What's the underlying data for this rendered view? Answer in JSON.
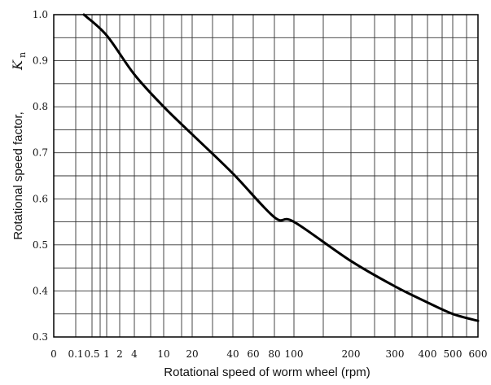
{
  "chart_data": {
    "type": "line",
    "title": "",
    "xlabel": "Rotational speed of worm wheel (rpm)",
    "ylabel": "Rotational speed factor,",
    "ylabel_symbol": "K",
    "ylabel_symbol_sub": "n",
    "x_ticks": [
      "0",
      "0.1",
      "0.5",
      "1",
      "2",
      "4",
      "10",
      "20",
      "40",
      "60",
      "80",
      "100",
      "200",
      "300",
      "400",
      "500",
      "600"
    ],
    "y_ticks": [
      "0.3",
      "0.4",
      "0.5",
      "0.6",
      "0.7",
      "0.8",
      "0.9",
      "1.0"
    ],
    "ylim": [
      0.3,
      1.0
    ],
    "grid": true,
    "series": [
      {
        "name": "",
        "x": [
          "0.3",
          "1",
          "4",
          "10",
          "20",
          "40",
          "80",
          "100",
          "200",
          "300",
          "400",
          "500",
          "600"
        ],
        "y": [
          1.0,
          0.955,
          0.87,
          0.8,
          0.74,
          0.655,
          0.56,
          0.55,
          0.465,
          0.41,
          0.375,
          0.35,
          0.335
        ]
      }
    ]
  }
}
